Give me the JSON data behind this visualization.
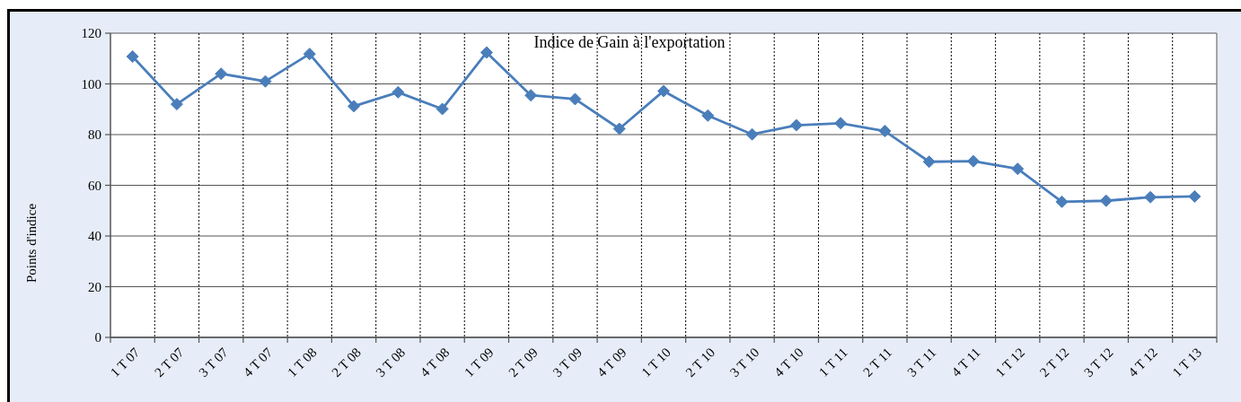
{
  "chart_data": {
    "type": "line",
    "title": "Indice de Gain à l'exportation",
    "ylabel": "Points d'indice",
    "categories": [
      "1 T 07",
      "2 T 07",
      "3 T 07",
      "4 T 07",
      "1 T 08",
      "2 T 08",
      "3 T 08",
      "4 T 08",
      "1 T 09",
      "2 T 09",
      "3 T 09",
      "4 T 09",
      "1 T 10",
      "2 T 10",
      "3 T 10",
      "4 T 10",
      "1 T 11",
      "2 T 11",
      "3 T 11",
      "4 T 11",
      "1 T 12",
      "2 T 12",
      "3 T 12",
      "4 T 12",
      "1 T 13"
    ],
    "series": [
      {
        "color": "#4a7ebb",
        "values": [
          110.8,
          92,
          104,
          101,
          111.8,
          91.2,
          96.7,
          90.1,
          112.4,
          95.5,
          94,
          82.3,
          97.2,
          87.5,
          80.1,
          83.7,
          84.5,
          81.4,
          69.3,
          69.5,
          66.5,
          53.5,
          53.9,
          55.3,
          55.6
        ]
      }
    ],
    "ylim": [
      0,
      120
    ],
    "yticks": [
      0,
      20,
      40,
      60,
      80,
      100,
      120
    ],
    "grid": true,
    "marker": "diamond",
    "line_style": "solid"
  }
}
